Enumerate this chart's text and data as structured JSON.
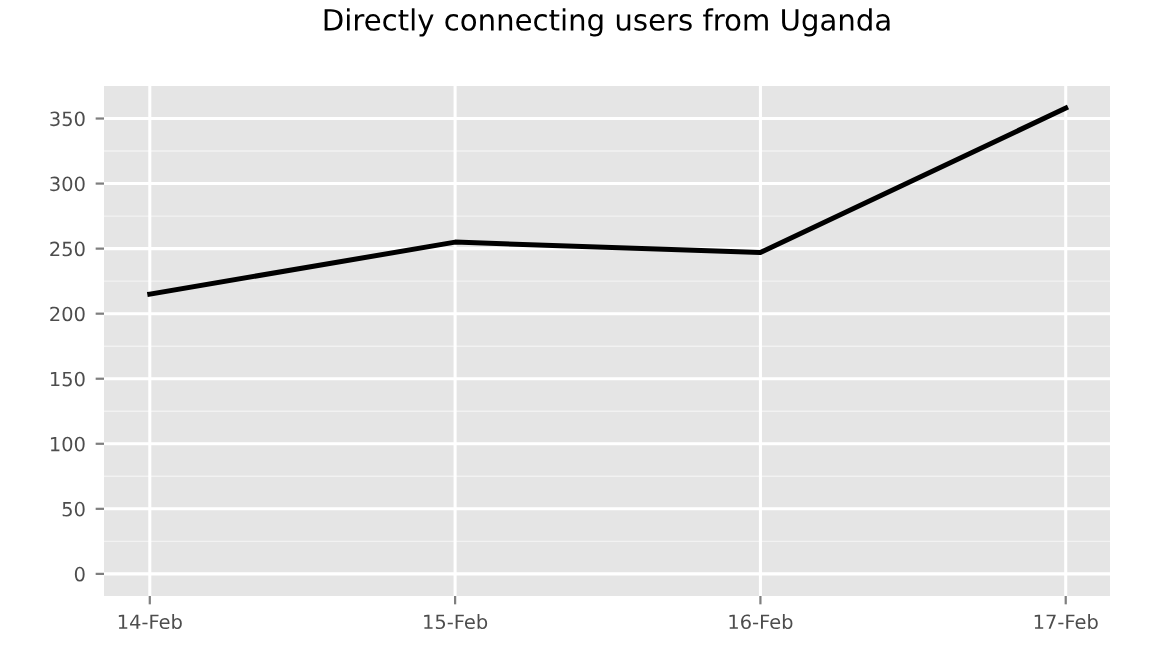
{
  "chart_data": {
    "type": "line",
    "title": "Directly connecting users from Uganda",
    "categories": [
      "14-Feb",
      "15-Feb",
      "16-Feb",
      "17-Feb"
    ],
    "series": [
      {
        "color": "#000000",
        "values": [
          215,
          255,
          247,
          358
        ]
      }
    ],
    "ylim": [
      -17,
      375
    ],
    "yticks": [
      0,
      50,
      100,
      150,
      200,
      250,
      300,
      350
    ],
    "grid": true,
    "legend": false,
    "marker": "none",
    "line_style": "solid"
  }
}
